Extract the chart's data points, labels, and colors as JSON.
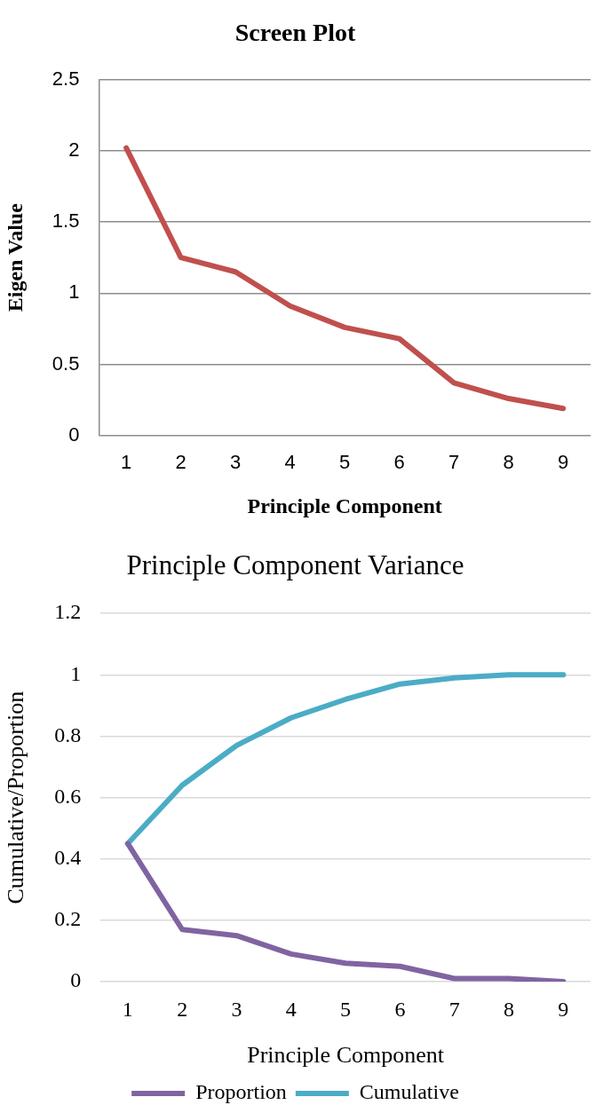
{
  "chart_data": [
    {
      "type": "line",
      "title": "Screen Plot",
      "xlabel": "Principle Component",
      "ylabel": "Eigen Value",
      "categories": [
        "1",
        "2",
        "3",
        "4",
        "5",
        "6",
        "7",
        "8",
        "9"
      ],
      "series": [
        {
          "color": "#c0504d",
          "values": [
            2.02,
            1.25,
            1.15,
            0.91,
            0.76,
            0.68,
            0.37,
            0.26,
            0.19
          ]
        }
      ],
      "ylim": [
        0,
        2.5
      ],
      "yticks": [
        0,
        0.5,
        1,
        1.5,
        2,
        2.5
      ],
      "grid": "y",
      "marker": "none"
    },
    {
      "type": "line",
      "title": "Principle Component Variance",
      "xlabel": "Principle Component",
      "ylabel": "Cumulative/Proportion",
      "categories": [
        "1",
        "2",
        "3",
        "4",
        "5",
        "6",
        "7",
        "8",
        "9"
      ],
      "series": [
        {
          "name": "Proportion",
          "color": "#8064a2",
          "values": [
            0.45,
            0.17,
            0.15,
            0.09,
            0.06,
            0.05,
            0.01,
            0.01,
            0.0
          ]
        },
        {
          "name": "Cumulative",
          "color": "#4bacc6",
          "values": [
            0.45,
            0.64,
            0.77,
            0.86,
            0.92,
            0.97,
            0.99,
            1.0,
            1.0
          ]
        }
      ],
      "ylim": [
        0,
        1.2
      ],
      "yticks": [
        0,
        0.2,
        0.4,
        0.6,
        0.8,
        1,
        1.2
      ],
      "grid": "y",
      "legend": "bottom",
      "marker": "none"
    }
  ]
}
